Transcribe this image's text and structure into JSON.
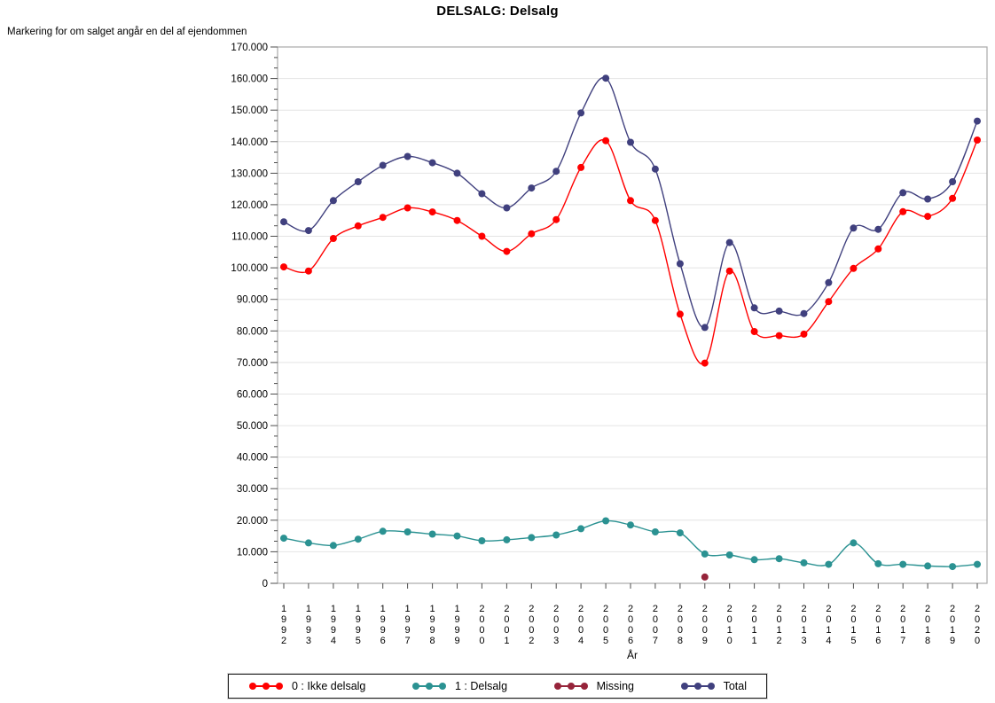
{
  "page": {
    "title": "DELSALG: Delsalg",
    "ylabel": "Markering for om salget angår en del af ejendommen",
    "xlabel": "År"
  },
  "colors": {
    "gridline": "#E4E4E4",
    "frame": "#A9A9A9",
    "tick": "#4D4D4D",
    "red": "#FF0000",
    "teal": "#2B9292",
    "maroon": "#96243A",
    "navy": "#40407E"
  },
  "chart_data": {
    "type": "line",
    "title": "DELSALG: Delsalg",
    "ylabel": "Markering for om salget angår en del af ejendommen",
    "xlabel": "År",
    "ylim": [
      0,
      170000
    ],
    "ytick_interval": 10000,
    "ytick_labels": [
      "0",
      "10.000",
      "20.000",
      "30.000",
      "40.000",
      "50.000",
      "60.000",
      "70.000",
      "80.000",
      "90.000",
      "100.000",
      "110.000",
      "120.000",
      "130.000",
      "140.000",
      "150.000",
      "160.000",
      "170.000"
    ],
    "grid": true,
    "smooth": true,
    "legend_position": "bottom",
    "categories": [
      "1992",
      "1993",
      "1994",
      "1995",
      "1996",
      "1997",
      "1998",
      "1999",
      "2000",
      "2001",
      "2002",
      "2003",
      "2004",
      "2005",
      "2006",
      "2007",
      "2008",
      "2009",
      "2010",
      "2011",
      "2012",
      "2013",
      "2014",
      "2015",
      "2016",
      "2017",
      "2018",
      "2019",
      "2020"
    ],
    "series": [
      {
        "name": "0 : Ikke delsalg",
        "color": "#FF0000",
        "values": [
          100300,
          99000,
          109300,
          113300,
          116000,
          119000,
          117700,
          115000,
          110000,
          105200,
          110800,
          115300,
          131800,
          140300,
          121300,
          115000,
          85300,
          69800,
          99000,
          79800,
          78500,
          79000,
          89300,
          99800,
          106000,
          117800,
          116300,
          122000,
          140500
        ]
      },
      {
        "name": "1 : Delsalg",
        "color": "#2B9292",
        "values": [
          14300,
          12800,
          12000,
          14000,
          16500,
          16300,
          15600,
          15000,
          13500,
          13800,
          14500,
          15300,
          17300,
          19800,
          18500,
          16300,
          16000,
          9300,
          9000,
          7500,
          7800,
          6500,
          6000,
          12800,
          6200,
          6000,
          5500,
          5300,
          6000
        ]
      },
      {
        "name": "Missing",
        "color": "#96243A",
        "values": [
          null,
          null,
          null,
          null,
          null,
          null,
          null,
          null,
          null,
          null,
          null,
          null,
          null,
          null,
          null,
          null,
          null,
          2000,
          null,
          null,
          null,
          null,
          null,
          null,
          null,
          null,
          null,
          null,
          null
        ]
      },
      {
        "name": "Total",
        "color": "#40407E",
        "values": [
          114600,
          111800,
          121300,
          127300,
          132500,
          135300,
          133300,
          130000,
          123500,
          119000,
          125300,
          130600,
          149100,
          160100,
          139800,
          131300,
          101300,
          81100,
          108000,
          87300,
          86300,
          85500,
          95300,
          112600,
          112200,
          123800,
          121800,
          127300,
          146500
        ]
      }
    ]
  }
}
